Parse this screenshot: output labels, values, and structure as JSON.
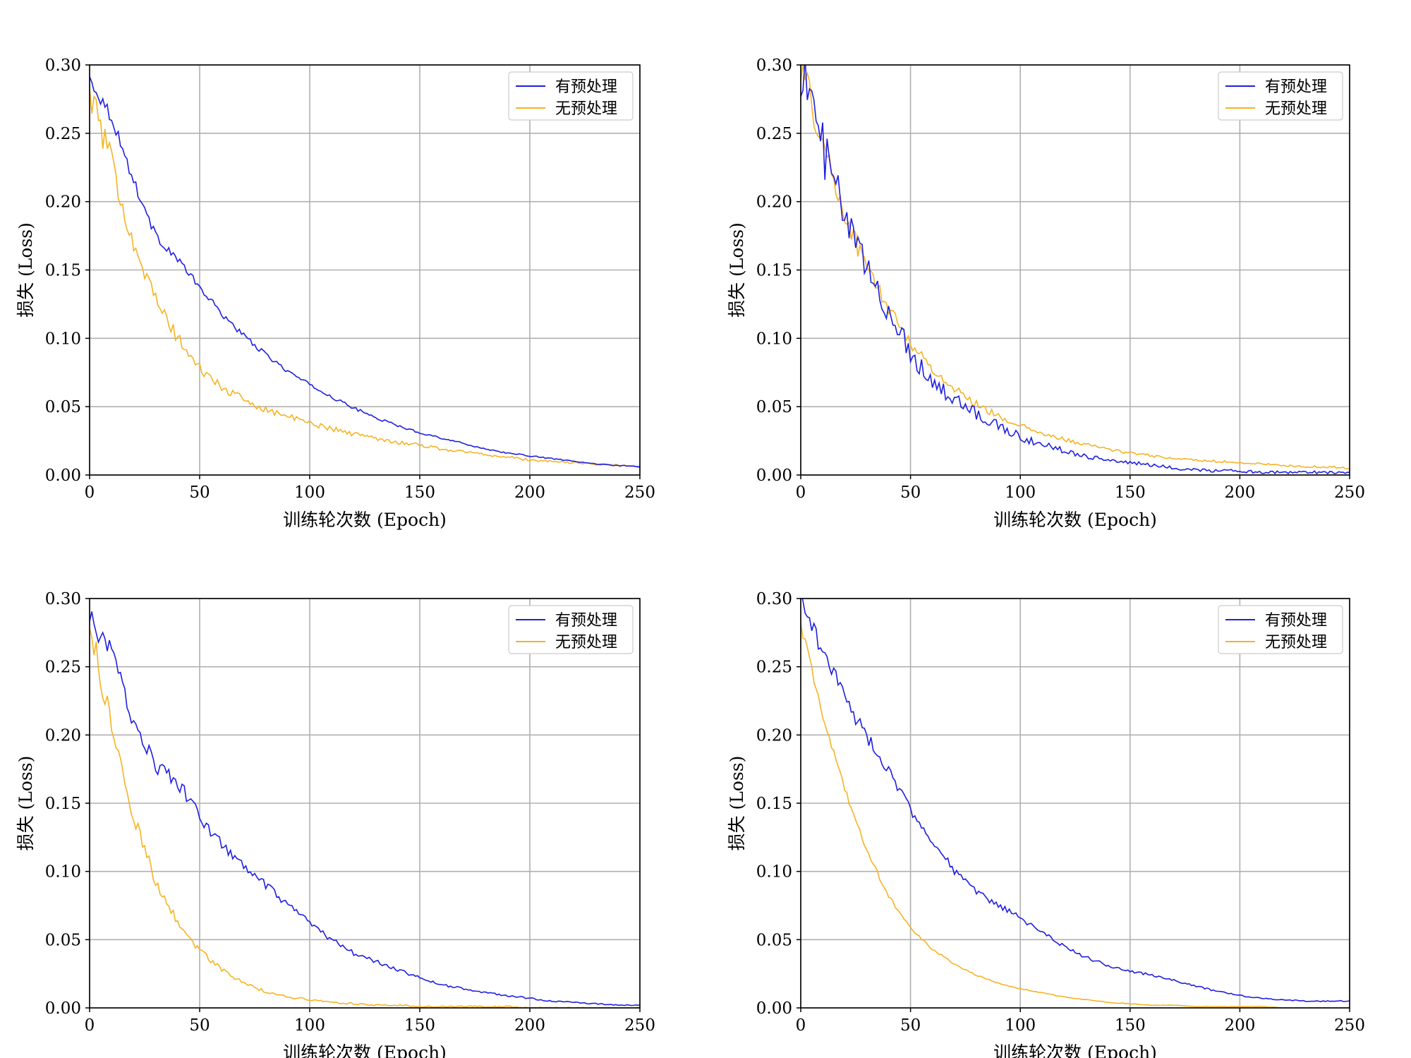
{
  "colors": {
    "preprocessed": "#1f1fe0",
    "raw": "#f5b324",
    "grid": "#b0b0b0"
  },
  "chart_data": [
    {
      "type": "line",
      "xlabel": "训练轮次数 (Epoch)",
      "ylabel": "损失 (Loss)",
      "xlim": [
        0,
        250
      ],
      "ylim": [
        0,
        0.3
      ],
      "xticks": [
        "0",
        "50",
        "100",
        "150",
        "200",
        "250"
      ],
      "yticks": [
        "0.00",
        "0.05",
        "0.10",
        "0.15",
        "0.20",
        "0.25",
        "0.30"
      ],
      "legend_position": "top-right",
      "series": [
        {
          "name": "有预处理",
          "x": [
            0,
            10,
            20,
            30,
            40,
            50,
            60,
            70,
            80,
            90,
            100,
            110,
            120,
            130,
            140,
            150,
            160,
            170,
            180,
            190,
            200,
            210,
            220,
            230,
            240,
            250
          ],
          "values": [
            0.29,
            0.262,
            0.215,
            0.175,
            0.158,
            0.137,
            0.118,
            0.102,
            0.088,
            0.076,
            0.066,
            0.057,
            0.049,
            0.042,
            0.036,
            0.031,
            0.027,
            0.023,
            0.019,
            0.016,
            0.014,
            0.012,
            0.01,
            0.008,
            0.007,
            0.006
          ]
        },
        {
          "name": "无预处理",
          "x": [
            0,
            10,
            20,
            30,
            40,
            50,
            60,
            70,
            80,
            90,
            100,
            110,
            120,
            130,
            140,
            150,
            160,
            170,
            180,
            190,
            200,
            210,
            220,
            230,
            240,
            250
          ],
          "values": [
            0.28,
            0.228,
            0.17,
            0.128,
            0.1,
            0.078,
            0.064,
            0.055,
            0.048,
            0.043,
            0.038,
            0.034,
            0.03,
            0.027,
            0.024,
            0.022,
            0.019,
            0.017,
            0.015,
            0.013,
            0.011,
            0.01,
            0.009,
            0.008,
            0.007,
            0.006
          ]
        }
      ]
    },
    {
      "type": "line",
      "xlabel": "训练轮次数 (Epoch)",
      "ylabel": "损失 (Loss)",
      "xlim": [
        0,
        250
      ],
      "ylim": [
        0,
        0.3
      ],
      "xticks": [
        "0",
        "50",
        "100",
        "150",
        "200",
        "250"
      ],
      "yticks": [
        "0.00",
        "0.05",
        "0.10",
        "0.15",
        "0.20",
        "0.25",
        "0.30"
      ],
      "legend_position": "top-right",
      "series": [
        {
          "name": "有预处理",
          "x": [
            0,
            10,
            20,
            30,
            40,
            50,
            60,
            70,
            80,
            90,
            100,
            110,
            120,
            130,
            140,
            150,
            160,
            170,
            180,
            190,
            200,
            210,
            220,
            230,
            240,
            250
          ],
          "values": [
            0.3,
            0.24,
            0.188,
            0.15,
            0.12,
            0.09,
            0.068,
            0.055,
            0.045,
            0.036,
            0.028,
            0.022,
            0.018,
            0.014,
            0.011,
            0.009,
            0.007,
            0.005,
            0.004,
            0.003,
            0.003,
            0.002,
            0.002,
            0.002,
            0.002,
            0.002
          ]
        },
        {
          "name": "无预处理",
          "x": [
            0,
            10,
            20,
            30,
            40,
            50,
            60,
            70,
            80,
            90,
            100,
            110,
            120,
            130,
            140,
            150,
            160,
            170,
            180,
            190,
            200,
            210,
            220,
            230,
            240,
            250
          ],
          "values": [
            0.3,
            0.242,
            0.19,
            0.152,
            0.122,
            0.097,
            0.077,
            0.063,
            0.052,
            0.043,
            0.036,
            0.03,
            0.026,
            0.022,
            0.019,
            0.016,
            0.014,
            0.012,
            0.011,
            0.01,
            0.009,
            0.008,
            0.007,
            0.006,
            0.006,
            0.005
          ]
        }
      ]
    },
    {
      "type": "line",
      "xlabel": "训练轮次数 (Epoch)",
      "ylabel": "损失 (Loss)",
      "xlim": [
        0,
        250
      ],
      "ylim": [
        0,
        0.3
      ],
      "xticks": [
        "0",
        "50",
        "100",
        "150",
        "200",
        "250"
      ],
      "yticks": [
        "0.00",
        "0.05",
        "0.10",
        "0.15",
        "0.20",
        "0.25",
        "0.30"
      ],
      "legend_position": "top-right",
      "series": [
        {
          "name": "有预处理",
          "x": [
            0,
            10,
            20,
            30,
            40,
            50,
            60,
            70,
            80,
            90,
            100,
            110,
            120,
            130,
            140,
            150,
            160,
            170,
            180,
            190,
            200,
            210,
            220,
            230,
            240,
            250
          ],
          "values": [
            0.285,
            0.26,
            0.21,
            0.178,
            0.165,
            0.14,
            0.12,
            0.103,
            0.09,
            0.075,
            0.062,
            0.05,
            0.04,
            0.034,
            0.028,
            0.022,
            0.017,
            0.014,
            0.011,
            0.009,
            0.007,
            0.005,
            0.004,
            0.003,
            0.002,
            0.002
          ]
        },
        {
          "name": "无预处理",
          "x": [
            0,
            10,
            20,
            30,
            40,
            50,
            60,
            70,
            80,
            90,
            100,
            110,
            120,
            130,
            140,
            150,
            160,
            170,
            180,
            190,
            200,
            210,
            220,
            230,
            240,
            250
          ],
          "values": [
            0.28,
            0.205,
            0.14,
            0.093,
            0.063,
            0.042,
            0.028,
            0.018,
            0.012,
            0.008,
            0.006,
            0.004,
            0.003,
            0.002,
            0.002,
            0.001,
            0.001,
            0.001,
            0.001,
            0.001,
            0.0,
            0.0,
            0.0,
            0.0,
            0.0,
            0.0
          ]
        }
      ]
    },
    {
      "type": "line",
      "xlabel": "训练轮次数 (Epoch)",
      "ylabel": "损失 (Loss)",
      "xlim": [
        0,
        250
      ],
      "ylim": [
        0,
        0.3
      ],
      "xticks": [
        "0",
        "50",
        "100",
        "150",
        "200",
        "250"
      ],
      "yticks": [
        "0.00",
        "0.05",
        "0.10",
        "0.15",
        "0.20",
        "0.25",
        "0.30"
      ],
      "legend_position": "top-right",
      "series": [
        {
          "name": "有预处理",
          "x": [
            0,
            10,
            20,
            30,
            40,
            50,
            60,
            70,
            80,
            90,
            100,
            110,
            120,
            130,
            140,
            150,
            160,
            170,
            180,
            190,
            200,
            210,
            220,
            230,
            240,
            250
          ],
          "values": [
            0.3,
            0.262,
            0.228,
            0.198,
            0.175,
            0.145,
            0.123,
            0.1,
            0.085,
            0.075,
            0.066,
            0.055,
            0.045,
            0.037,
            0.031,
            0.027,
            0.024,
            0.02,
            0.016,
            0.012,
            0.009,
            0.007,
            0.006,
            0.005,
            0.005,
            0.005
          ]
        },
        {
          "name": "无预处理",
          "x": [
            0,
            10,
            20,
            30,
            40,
            50,
            60,
            70,
            80,
            90,
            100,
            110,
            120,
            130,
            140,
            150,
            160,
            170,
            180,
            190,
            200,
            210,
            220,
            230,
            240,
            250
          ],
          "values": [
            0.28,
            0.215,
            0.16,
            0.115,
            0.082,
            0.058,
            0.043,
            0.032,
            0.024,
            0.018,
            0.014,
            0.011,
            0.008,
            0.006,
            0.004,
            0.003,
            0.002,
            0.002,
            0.001,
            0.001,
            0.001,
            0.001,
            0.0,
            0.0,
            0.0,
            0.0
          ]
        }
      ]
    }
  ]
}
